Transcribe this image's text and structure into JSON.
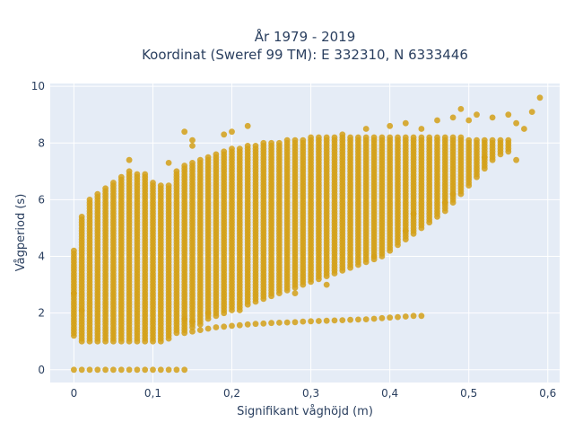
{
  "chart_data": {
    "type": "scatter",
    "title_line1": "År 1979 - 2019",
    "title_line2": "Koordinat (Sweref 99 TM): E 332310, N 6333446",
    "xlabel": "Signifikant våghöjd (m)",
    "ylabel": "Vågperiod (s)",
    "xlim": [
      -0.03,
      0.615
    ],
    "ylim": [
      -0.45,
      10.1
    ],
    "x_ticks": [
      0,
      0.1,
      0.2,
      0.3,
      0.4,
      0.5,
      0.6
    ],
    "x_tick_labels": [
      "0",
      "0,1",
      "0,2",
      "0,3",
      "0,4",
      "0,5",
      "0,6"
    ],
    "y_ticks": [
      0,
      2,
      4,
      6,
      8,
      10
    ],
    "y_tick_labels": [
      "0",
      "2",
      "4",
      "6",
      "8",
      "10"
    ],
    "grid": true,
    "marker_color": "#D4A017",
    "plot_background": "#E5ECF6",
    "series": [
      {
        "columns_x_step": 0.01,
        "columns": [
          [
            0.0,
            1.2,
            4.2
          ],
          [
            0.01,
            1.0,
            5.4
          ],
          [
            0.02,
            1.0,
            6.0
          ],
          [
            0.03,
            1.0,
            6.2
          ],
          [
            0.04,
            1.0,
            6.4
          ],
          [
            0.05,
            1.0,
            6.6
          ],
          [
            0.06,
            1.0,
            6.8
          ],
          [
            0.07,
            1.0,
            7.0
          ],
          [
            0.08,
            1.0,
            6.9
          ],
          [
            0.09,
            1.0,
            6.9
          ],
          [
            0.1,
            1.0,
            6.6
          ],
          [
            0.11,
            1.0,
            6.5
          ],
          [
            0.12,
            1.1,
            6.5
          ],
          [
            0.13,
            1.3,
            7.0
          ],
          [
            0.14,
            1.4,
            7.2
          ],
          [
            0.15,
            1.5,
            7.3
          ],
          [
            0.16,
            1.6,
            7.4
          ],
          [
            0.17,
            1.8,
            7.5
          ],
          [
            0.18,
            1.9,
            7.6
          ],
          [
            0.19,
            2.0,
            7.7
          ],
          [
            0.2,
            2.1,
            7.8
          ],
          [
            0.21,
            2.2,
            7.8
          ],
          [
            0.22,
            2.3,
            7.9
          ],
          [
            0.23,
            2.4,
            7.9
          ],
          [
            0.24,
            2.5,
            8.0
          ],
          [
            0.25,
            2.6,
            8.0
          ],
          [
            0.26,
            2.7,
            8.0
          ],
          [
            0.27,
            2.8,
            8.1
          ],
          [
            0.28,
            2.9,
            8.1
          ],
          [
            0.29,
            3.0,
            8.1
          ],
          [
            0.3,
            3.1,
            8.2
          ],
          [
            0.31,
            3.2,
            8.2
          ],
          [
            0.32,
            3.3,
            8.2
          ],
          [
            0.33,
            3.4,
            8.2
          ],
          [
            0.34,
            3.5,
            8.2
          ],
          [
            0.35,
            3.6,
            8.2
          ],
          [
            0.36,
            3.7,
            8.2
          ],
          [
            0.37,
            3.8,
            8.2
          ],
          [
            0.38,
            3.9,
            8.2
          ],
          [
            0.39,
            4.0,
            8.2
          ],
          [
            0.4,
            4.2,
            8.2
          ],
          [
            0.41,
            4.4,
            8.2
          ],
          [
            0.42,
            4.6,
            8.2
          ],
          [
            0.43,
            4.8,
            8.2
          ],
          [
            0.44,
            5.0,
            8.2
          ],
          [
            0.45,
            5.2,
            8.2
          ],
          [
            0.46,
            5.4,
            8.2
          ],
          [
            0.47,
            5.6,
            8.2
          ],
          [
            0.48,
            5.9,
            8.2
          ],
          [
            0.49,
            6.2,
            8.2
          ],
          [
            0.5,
            6.5,
            8.1
          ],
          [
            0.51,
            6.8,
            8.1
          ],
          [
            0.52,
            7.1,
            8.1
          ],
          [
            0.53,
            7.4,
            8.1
          ],
          [
            0.54,
            7.6,
            8.1
          ],
          [
            0.55,
            7.7,
            8.1
          ]
        ],
        "low_band": [
          [
            0.14,
            1.3
          ],
          [
            0.15,
            1.35
          ],
          [
            0.16,
            1.4
          ],
          [
            0.17,
            1.45
          ],
          [
            0.18,
            1.5
          ],
          [
            0.19,
            1.52
          ],
          [
            0.2,
            1.55
          ],
          [
            0.21,
            1.57
          ],
          [
            0.22,
            1.6
          ],
          [
            0.23,
            1.62
          ],
          [
            0.24,
            1.63
          ],
          [
            0.25,
            1.65
          ],
          [
            0.26,
            1.66
          ],
          [
            0.27,
            1.67
          ],
          [
            0.28,
            1.68
          ],
          [
            0.29,
            1.7
          ],
          [
            0.3,
            1.71
          ],
          [
            0.31,
            1.72
          ],
          [
            0.32,
            1.73
          ],
          [
            0.33,
            1.74
          ],
          [
            0.34,
            1.75
          ],
          [
            0.35,
            1.76
          ],
          [
            0.36,
            1.77
          ],
          [
            0.37,
            1.78
          ],
          [
            0.38,
            1.8
          ],
          [
            0.39,
            1.82
          ],
          [
            0.4,
            1.84
          ],
          [
            0.41,
            1.86
          ],
          [
            0.42,
            1.88
          ],
          [
            0.43,
            1.9
          ]
        ],
        "zero_row": [
          0.0,
          0.01,
          0.02,
          0.03,
          0.04,
          0.05,
          0.06,
          0.07,
          0.08,
          0.09,
          0.1,
          0.11,
          0.12,
          0.13,
          0.14
        ],
        "outliers": [
          [
            0.0,
            2.7
          ],
          [
            0.01,
            2.1
          ],
          [
            0.07,
            7.4
          ],
          [
            0.12,
            7.3
          ],
          [
            0.14,
            8.4
          ],
          [
            0.15,
            7.9
          ],
          [
            0.15,
            8.1
          ],
          [
            0.19,
            8.3
          ],
          [
            0.2,
            8.4
          ],
          [
            0.22,
            8.6
          ],
          [
            0.34,
            8.3
          ],
          [
            0.37,
            8.5
          ],
          [
            0.4,
            8.6
          ],
          [
            0.42,
            8.7
          ],
          [
            0.44,
            8.5
          ],
          [
            0.46,
            8.8
          ],
          [
            0.48,
            8.9
          ],
          [
            0.49,
            9.2
          ],
          [
            0.5,
            8.8
          ],
          [
            0.51,
            9.0
          ],
          [
            0.53,
            8.9
          ],
          [
            0.55,
            9.0
          ],
          [
            0.56,
            8.7
          ],
          [
            0.57,
            8.5
          ],
          [
            0.58,
            9.1
          ],
          [
            0.59,
            9.6
          ],
          [
            0.56,
            7.4
          ],
          [
            0.52,
            7.5
          ],
          [
            0.48,
            6.2
          ],
          [
            0.47,
            5.9
          ],
          [
            0.43,
            5.5
          ],
          [
            0.42,
            4.9
          ],
          [
            0.38,
            4.0
          ],
          [
            0.32,
            3.0
          ],
          [
            0.28,
            2.7
          ],
          [
            0.21,
            2.1
          ],
          [
            0.17,
            2.0
          ],
          [
            0.15,
            1.7
          ],
          [
            0.14,
            1.8
          ],
          [
            0.44,
            1.9
          ]
        ]
      }
    ]
  }
}
